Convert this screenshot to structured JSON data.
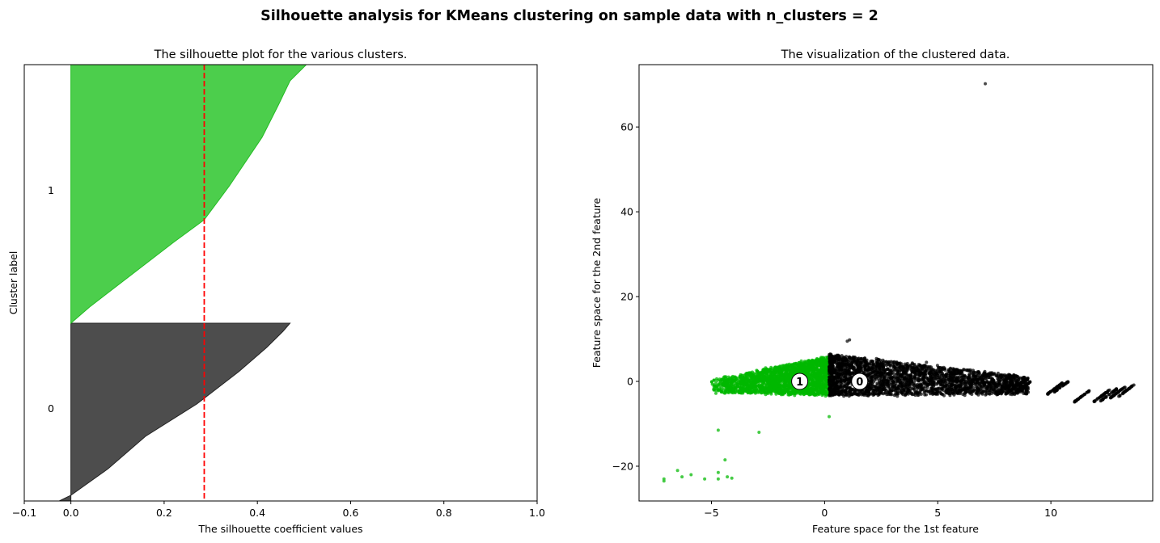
{
  "suptitle": "Silhouette analysis for KMeans clustering on sample data with n_clusters = 2",
  "chart_data": [
    {
      "type": "area",
      "title": "The silhouette plot for the various clusters.",
      "xlabel": "The silhouette coefficient values",
      "ylabel": "Cluster label",
      "xlim": [
        -0.1,
        1.0
      ],
      "ylim": [
        0,
        540
      ],
      "xticks": [
        -0.1,
        0.0,
        0.2,
        0.4,
        0.6,
        0.8,
        1.0
      ],
      "xtick_labels": [
        "−0.1",
        "0.0",
        "0.2",
        "0.4",
        "0.6",
        "0.8",
        "1.0"
      ],
      "average_silhouette": 0.286,
      "average_line_color": "#ff0000",
      "clusters": [
        {
          "label": "0",
          "color": "#4d4d4d",
          "label_y": 115,
          "curve": [
            [
              0,
              -0.025
            ],
            [
              7,
              0.0
            ],
            [
              40,
              0.08
            ],
            [
              80,
              0.16
            ],
            [
              120,
              0.27
            ],
            [
              160,
              0.36
            ],
            [
              190,
              0.42
            ],
            [
              210,
              0.455
            ],
            [
              220,
              0.47
            ]
          ]
        },
        {
          "label": "1",
          "color": "#4cce4c",
          "label_y": 385,
          "curve": [
            [
              220,
              0.0
            ],
            [
              240,
              0.04
            ],
            [
              280,
              0.13
            ],
            [
              320,
              0.22
            ],
            [
              348,
              0.286
            ],
            [
              390,
              0.34
            ],
            [
              450,
              0.41
            ],
            [
              490,
              0.445
            ],
            [
              520,
              0.47
            ],
            [
              540,
              0.505
            ]
          ]
        }
      ]
    },
    {
      "type": "scatter",
      "title": "The visualization of the clustered data.",
      "xlabel": "Feature space for the 1st feature",
      "ylabel": "Feature space for the 2nd feature",
      "xlim": [
        -8.2,
        14.5
      ],
      "ylim": [
        -28.2,
        74.7
      ],
      "xticks": [
        -5,
        0,
        5,
        10
      ],
      "xtick_labels": [
        "−5",
        "0",
        "5",
        "10"
      ],
      "yticks": [
        -20,
        0,
        20,
        40,
        60
      ],
      "ytick_labels": [
        "−20",
        "0",
        "20",
        "40",
        "60"
      ],
      "centers": [
        {
          "label": "0",
          "x": 1.55,
          "y": 0.0
        },
        {
          "label": "1",
          "x": -1.1,
          "y": 0.0
        }
      ],
      "series": [
        {
          "name": "cluster 0",
          "color": "#000000",
          "outliers": [
            [
              7.1,
              70.2
            ],
            [
              1.0,
              9.5
            ],
            [
              1.1,
              9.8
            ],
            [
              4.5,
              4.5
            ]
          ]
        },
        {
          "name": "cluster 1",
          "color": "#00b800",
          "outliers": [
            [
              -7.1,
              -23.0
            ],
            [
              -7.1,
              -23.5
            ],
            [
              -6.5,
              -21.0
            ],
            [
              -6.3,
              -22.5
            ],
            [
              -5.9,
              -22.0
            ],
            [
              -5.3,
              -23.0
            ],
            [
              -4.7,
              -21.5
            ],
            [
              -4.7,
              -23.0
            ],
            [
              -4.4,
              -18.5
            ],
            [
              -4.3,
              -22.5
            ],
            [
              -4.1,
              -22.8
            ],
            [
              -4.7,
              -11.5
            ],
            [
              -2.9,
              -12.0
            ],
            [
              0.2,
              -8.3
            ]
          ]
        }
      ]
    }
  ]
}
